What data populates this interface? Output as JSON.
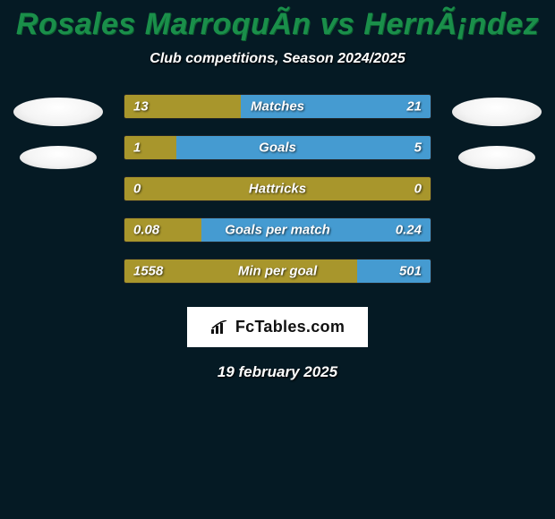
{
  "background_color": "#051a24",
  "title": "Rosales MarroquÃ­n vs HernÃ¡ndez",
  "title_color": "#1a8f4a",
  "subtitle": "Club competitions, Season 2024/2025",
  "text_color": "#ffffff",
  "left_color": "#a8962c",
  "right_color": "#459bd1",
  "neutral_color": "#2a2f33",
  "avatar_color": "#f0f0f0",
  "stats": [
    {
      "label": "Matches",
      "left_val": "13",
      "right_val": "21",
      "left_pct": 38,
      "right_pct": 62
    },
    {
      "label": "Goals",
      "left_val": "1",
      "right_val": "5",
      "left_pct": 17,
      "right_pct": 83
    },
    {
      "label": "Hattricks",
      "left_val": "0",
      "right_val": "0",
      "left_pct": 100,
      "right_pct": 0
    },
    {
      "label": "Goals per match",
      "left_val": "0.08",
      "right_val": "0.24",
      "left_pct": 25,
      "right_pct": 75
    },
    {
      "label": "Min per goal",
      "left_val": "1558",
      "right_val": "501",
      "left_pct": 76,
      "right_pct": 24
    }
  ],
  "brand": "FcTables.com",
  "date": "19 february 2025"
}
